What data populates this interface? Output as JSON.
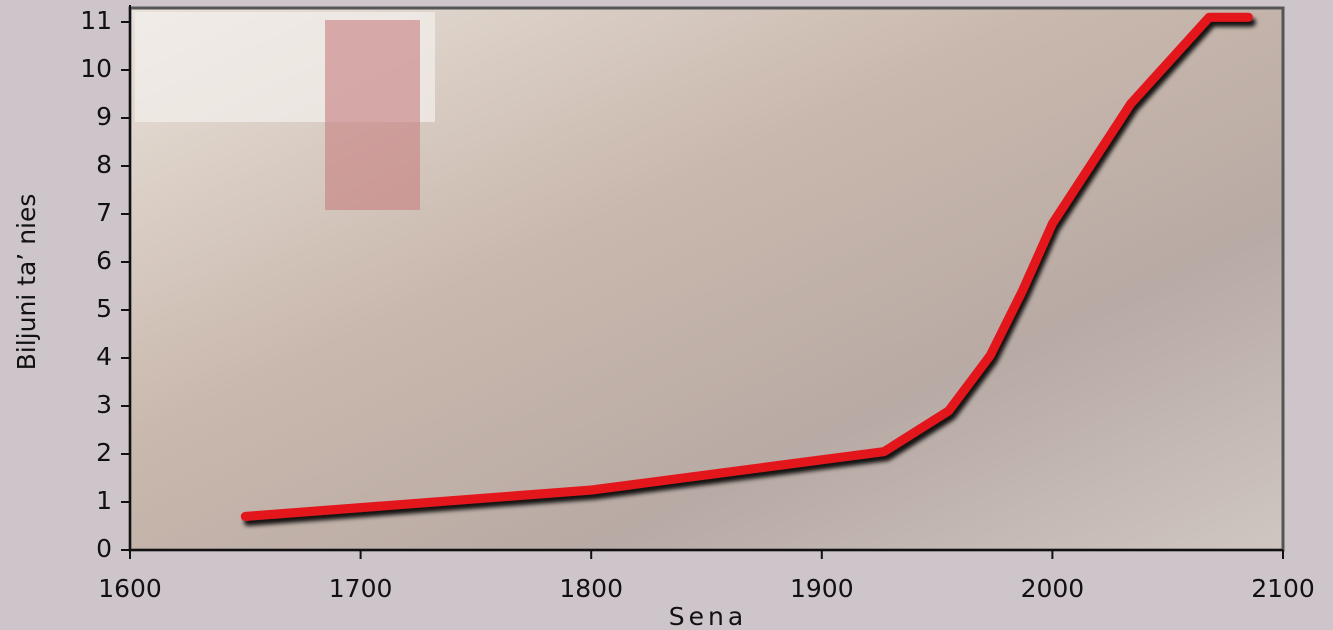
{
  "chart_data": {
    "type": "line",
    "x_label": "Sena",
    "y_label": "Biljuni ta’ nies",
    "x": [
      1650,
      1800,
      1927,
      1955,
      1973,
      1987,
      2000,
      2034,
      2068,
      2085
    ],
    "series": [
      {
        "color": "#e3161d",
        "values": [
          0.7,
          1.25,
          2.05,
          2.9,
          4.05,
          5.4,
          6.8,
          9.3,
          11.1,
          11.1
        ]
      }
    ],
    "xlim": [
      1600,
      2100
    ],
    "xticks": [
      1600,
      1700,
      1800,
      1900,
      2000,
      2100
    ],
    "ylim": [
      0,
      11
    ],
    "yticks": [
      0,
      1,
      2,
      3,
      4,
      5,
      6,
      7,
      8,
      9,
      10,
      11
    ]
  }
}
